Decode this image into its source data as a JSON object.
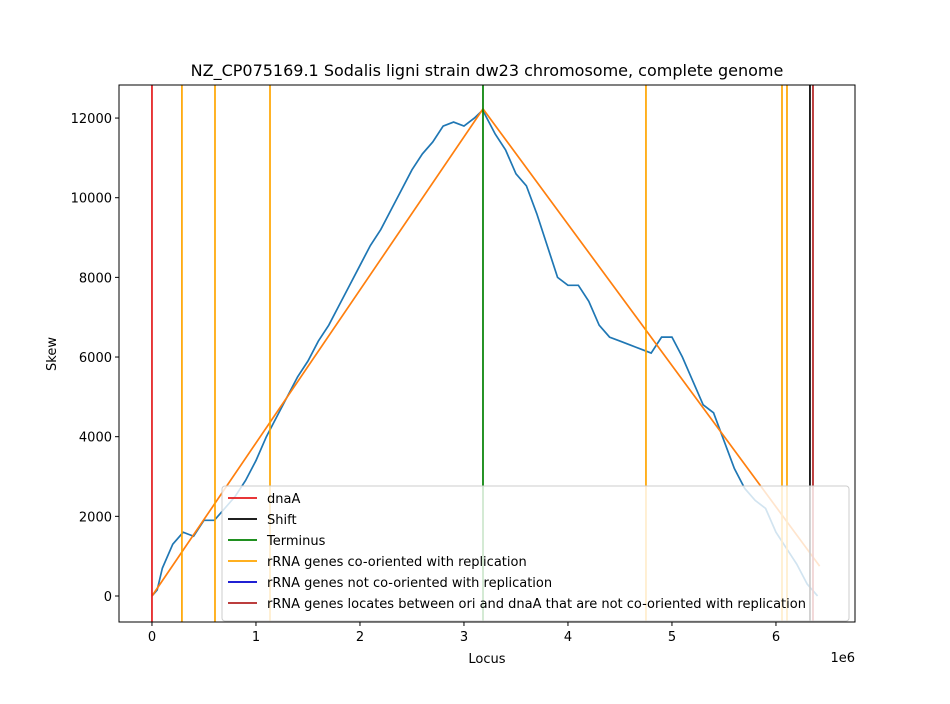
{
  "chart_data": {
    "type": "line",
    "title": "NZ_CP075169.1 Sodalis ligni strain dw23 chromosome, complete genome",
    "xlabel": "Locus",
    "ylabel": "Skew",
    "x_offset_label": "1e6",
    "xlim": [
      -317000,
      6760000
    ],
    "ylim": [
      -653,
      12830
    ],
    "xticks": [
      0,
      {
        "value": 1000000,
        "label": "1"
      },
      {
        "value": 2000000,
        "label": "2"
      },
      {
        "value": 3000000,
        "label": "3"
      },
      {
        "value": 4000000,
        "label": "4"
      },
      {
        "value": 5000000,
        "label": "5"
      },
      {
        "value": 6000000,
        "label": "6"
      }
    ],
    "yticks": [
      0,
      2000,
      4000,
      6000,
      8000,
      10000,
      12000
    ],
    "series": [
      {
        "color": "#1f77b4",
        "x": [
          0,
          50000,
          100000,
          200000,
          300000,
          400000,
          500000,
          600000,
          700000,
          800000,
          900000,
          1000000,
          1100000,
          1200000,
          1300000,
          1400000,
          1500000,
          1600000,
          1700000,
          1800000,
          1900000,
          2000000,
          2100000,
          2200000,
          2300000,
          2400000,
          2500000,
          2600000,
          2700000,
          2800000,
          2900000,
          3000000,
          3100000,
          3180000,
          3300000,
          3400000,
          3500000,
          3600000,
          3700000,
          3800000,
          3900000,
          4000000,
          4100000,
          4200000,
          4300000,
          4400000,
          4500000,
          4600000,
          4700000,
          4800000,
          4900000,
          5000000,
          5100000,
          5200000,
          5300000,
          5400000,
          5500000,
          5600000,
          5700000,
          5800000,
          5900000,
          6000000,
          6100000,
          6200000,
          6300000,
          6400000
        ],
        "values": [
          0,
          150,
          700,
          1300,
          1600,
          1500,
          1900,
          1900,
          2200,
          2500,
          2900,
          3400,
          4000,
          4500,
          5000,
          5500,
          5900,
          6400,
          6800,
          7300,
          7800,
          8300,
          8800,
          9200,
          9700,
          10200,
          10700,
          11100,
          11400,
          11800,
          11900,
          11800,
          12000,
          12200,
          11600,
          11200,
          10600,
          10300,
          9600,
          8800,
          8000,
          7800,
          7800,
          7400,
          6800,
          6500,
          6400,
          6300,
          6200,
          6100,
          6500,
          6500,
          6000,
          5400,
          4800,
          4600,
          3900,
          3200,
          2700,
          2400,
          2200,
          1600,
          1200,
          800,
          300,
          0
        ]
      },
      {
        "color": "#ff7f0e",
        "x": [
          0,
          3183000,
          6420000
        ],
        "values": [
          0,
          12230,
          750
        ]
      }
    ],
    "vlines": [
      {
        "name": "dnaA",
        "color": "#e41a1c",
        "x": [
          0
        ]
      },
      {
        "name": "Shift",
        "color": "#000000",
        "x": [
          6327000
        ]
      },
      {
        "name": "Terminus",
        "color": "#008000",
        "x": [
          3183000
        ]
      },
      {
        "name": "rRNA genes co-oriented with replication",
        "color": "#ffa500",
        "x": [
          288000,
          606000,
          1135000,
          4750000,
          6058000,
          6106000
        ]
      },
      {
        "name": "rRNA genes not co-oriented with replication",
        "color": "#0000cd",
        "x": []
      },
      {
        "name": "rRNA genes locates between ori and dnaA that are not co-oriented with replication",
        "color": "#b22222",
        "x": [
          6356000
        ]
      }
    ]
  }
}
